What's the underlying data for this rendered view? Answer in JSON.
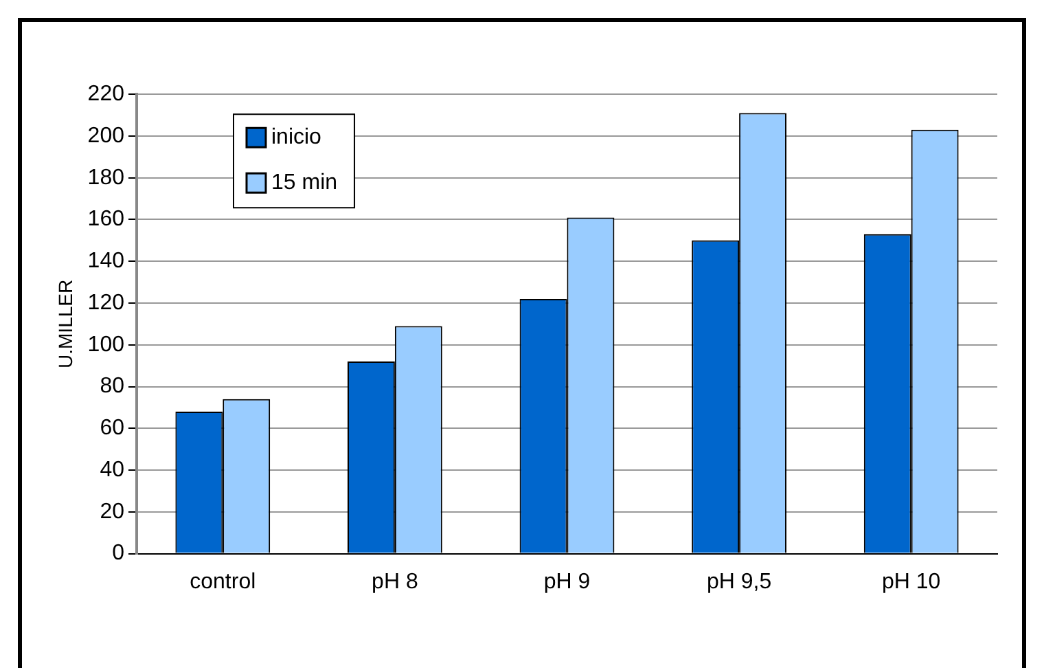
{
  "chart_data": {
    "type": "bar",
    "ylabel": "U.MILLER",
    "categories": [
      "control",
      "pH 8",
      "pH 9",
      "pH 9,5",
      "pH 10"
    ],
    "series": [
      {
        "name": "inicio",
        "color": "#0066cc",
        "values": [
          68,
          92,
          122,
          150,
          153
        ]
      },
      {
        "name": "15 min",
        "color": "#99ccff",
        "values": [
          74,
          109,
          161,
          211,
          203
        ]
      }
    ],
    "ylim": [
      0,
      220
    ],
    "yticks": [
      0,
      20,
      40,
      60,
      80,
      100,
      120,
      140,
      160,
      180,
      200,
      220
    ],
    "grid": "y",
    "legend": "top left"
  }
}
